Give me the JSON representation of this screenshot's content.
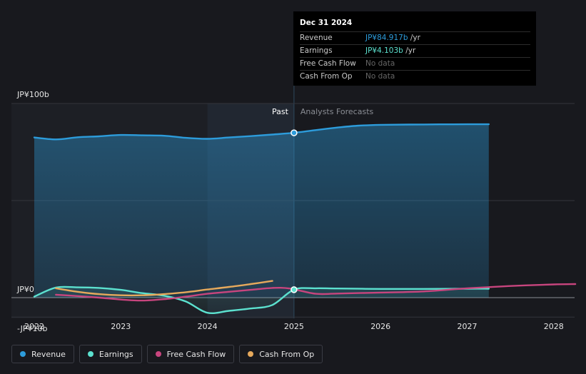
{
  "tooltip": {
    "date": "Dec 31 2024",
    "rows": [
      {
        "label": "Revenue",
        "value": "JP¥84.917b",
        "unit": "/yr",
        "color": "#2d9cdb"
      },
      {
        "label": "Earnings",
        "value": "JP¥4.103b",
        "unit": "/yr",
        "color": "#5ce1cf"
      },
      {
        "label": "Free Cash Flow",
        "value": "No data",
        "unit": "",
        "color": "#666666"
      },
      {
        "label": "Cash From Op",
        "value": "No data",
        "unit": "",
        "color": "#666666"
      }
    ]
  },
  "labels": {
    "past": "Past",
    "forecast": "Analysts Forecasts"
  },
  "legend": [
    {
      "label": "Revenue",
      "color": "#2d9cdb"
    },
    {
      "label": "Earnings",
      "color": "#5ce1cf"
    },
    {
      "label": "Free Cash Flow",
      "color": "#c8457e"
    },
    {
      "label": "Cash From Op",
      "color": "#e6a95c"
    }
  ],
  "chart_data": {
    "type": "line",
    "unit": "JP¥b",
    "y_tick_labels": [
      {
        "value": 100,
        "label": "JP¥100b"
      },
      {
        "value": 0,
        "label": "JP¥0"
      },
      {
        "value": -10,
        "label": "-JP¥10b"
      }
    ],
    "ylim": [
      -10,
      100
    ],
    "xlim": [
      2021.75,
      2028.25
    ],
    "x_ticks": [
      "2022",
      "2023",
      "2024",
      "2025",
      "2026",
      "2027",
      "2028"
    ],
    "past_end": 2025.0,
    "shade_start": 2024.0,
    "forecast_end": 2027.25,
    "grid": true,
    "series": [
      {
        "name": "Revenue",
        "color": "#2d9cdb",
        "points": [
          [
            2022.0,
            82.5
          ],
          [
            2022.25,
            81.5
          ],
          [
            2022.5,
            82.6
          ],
          [
            2022.75,
            83.1
          ],
          [
            2023.0,
            83.8
          ],
          [
            2023.25,
            83.6
          ],
          [
            2023.5,
            83.4
          ],
          [
            2023.75,
            82.3
          ],
          [
            2024.0,
            81.8
          ],
          [
            2024.25,
            82.5
          ],
          [
            2024.5,
            83.2
          ],
          [
            2024.75,
            84.0
          ],
          [
            2025.0,
            84.9
          ],
          [
            2025.25,
            86.3
          ],
          [
            2025.5,
            87.6
          ],
          [
            2025.75,
            88.6
          ],
          [
            2026.0,
            89.0
          ],
          [
            2026.5,
            89.2
          ],
          [
            2027.0,
            89.3
          ],
          [
            2027.25,
            89.3
          ]
        ]
      },
      {
        "name": "Earnings",
        "color": "#5ce1cf",
        "points": [
          [
            2022.0,
            0.5
          ],
          [
            2022.25,
            5.2
          ],
          [
            2022.5,
            5.3
          ],
          [
            2022.75,
            5.0
          ],
          [
            2023.0,
            4.0
          ],
          [
            2023.25,
            2.3
          ],
          [
            2023.5,
            1.0
          ],
          [
            2023.75,
            -2.0
          ],
          [
            2024.0,
            -7.8
          ],
          [
            2024.25,
            -6.8
          ],
          [
            2024.5,
            -5.6
          ],
          [
            2024.75,
            -3.8
          ],
          [
            2025.0,
            4.1
          ],
          [
            2025.25,
            4.8
          ],
          [
            2025.5,
            4.7
          ],
          [
            2026.0,
            4.5
          ],
          [
            2026.5,
            4.5
          ],
          [
            2027.0,
            4.6
          ],
          [
            2027.25,
            4.6
          ]
        ]
      },
      {
        "name": "Free Cash Flow",
        "color": "#c8457e",
        "points": [
          [
            2022.25,
            1.5
          ],
          [
            2022.5,
            0.8
          ],
          [
            2022.75,
            0.0
          ],
          [
            2023.0,
            -1.0
          ],
          [
            2023.25,
            -1.5
          ],
          [
            2023.5,
            -0.8
          ],
          [
            2023.75,
            0.5
          ],
          [
            2024.0,
            2.0
          ],
          [
            2024.25,
            3.0
          ],
          [
            2024.5,
            4.0
          ],
          [
            2024.75,
            5.0
          ],
          [
            2024.95,
            4.7
          ],
          [
            2025.25,
            2.0
          ],
          [
            2025.5,
            2.1
          ],
          [
            2026.0,
            2.6
          ],
          [
            2026.5,
            3.2
          ],
          [
            2027.0,
            4.8
          ],
          [
            2027.5,
            6.0
          ],
          [
            2028.0,
            6.8
          ],
          [
            2028.25,
            7.0
          ]
        ]
      },
      {
        "name": "Cash From Op",
        "color": "#e6a95c",
        "points": [
          [
            2022.25,
            4.8
          ],
          [
            2022.5,
            3.0
          ],
          [
            2022.75,
            1.8
          ],
          [
            2023.0,
            1.2
          ],
          [
            2023.25,
            1.2
          ],
          [
            2023.5,
            1.8
          ],
          [
            2023.75,
            2.8
          ],
          [
            2024.0,
            4.2
          ],
          [
            2024.25,
            5.5
          ],
          [
            2024.5,
            7.0
          ],
          [
            2024.75,
            8.6
          ]
        ]
      }
    ]
  }
}
